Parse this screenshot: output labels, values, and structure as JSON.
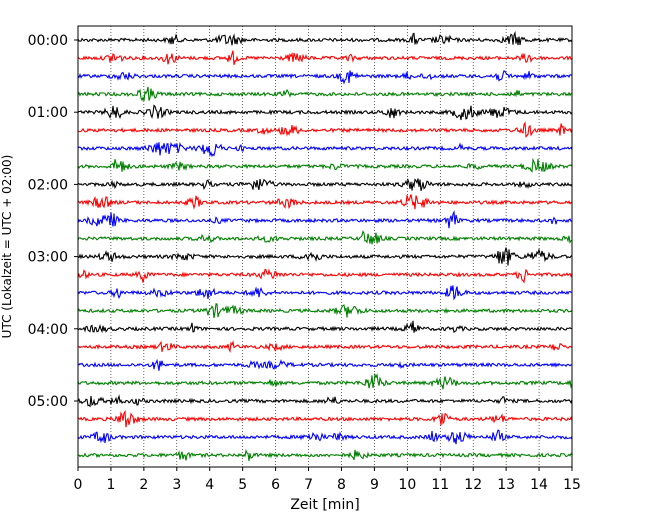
{
  "chart_data": {
    "type": "line",
    "title": "",
    "xlabel": "Zeit  [min]",
    "ylabel": "UTC (Lokalzeit = UTC + 02:00)",
    "xlim": [
      0,
      15
    ],
    "x_ticks": [
      "0",
      "1",
      "2",
      "3",
      "4",
      "5",
      "6",
      "7",
      "8",
      "9",
      "10",
      "11",
      "12",
      "13",
      "14",
      "15"
    ],
    "y_tick_labels": [
      "00:00",
      "01:00",
      "02:00",
      "03:00",
      "04:00",
      "05:00"
    ],
    "grid": "vertical dotted at each minute",
    "trace_interval_min": 15,
    "trace_count": 24,
    "trace_colors": [
      "#000000",
      "#ff0000",
      "#0000ff",
      "#008000"
    ],
    "series": [
      {
        "start": "00:00",
        "color": "#000000"
      },
      {
        "start": "00:15",
        "color": "#ff0000"
      },
      {
        "start": "00:30",
        "color": "#0000ff"
      },
      {
        "start": "00:45",
        "color": "#008000"
      },
      {
        "start": "01:00",
        "color": "#000000"
      },
      {
        "start": "01:15",
        "color": "#ff0000"
      },
      {
        "start": "01:30",
        "color": "#0000ff"
      },
      {
        "start": "01:45",
        "color": "#008000"
      },
      {
        "start": "02:00",
        "color": "#000000"
      },
      {
        "start": "02:15",
        "color": "#ff0000"
      },
      {
        "start": "02:30",
        "color": "#0000ff"
      },
      {
        "start": "02:45",
        "color": "#008000"
      },
      {
        "start": "03:00",
        "color": "#000000"
      },
      {
        "start": "03:15",
        "color": "#ff0000"
      },
      {
        "start": "03:30",
        "color": "#0000ff"
      },
      {
        "start": "03:45",
        "color": "#008000"
      },
      {
        "start": "04:00",
        "color": "#000000"
      },
      {
        "start": "04:15",
        "color": "#ff0000"
      },
      {
        "start": "04:30",
        "color": "#0000ff"
      },
      {
        "start": "04:45",
        "color": "#008000"
      },
      {
        "start": "05:00",
        "color": "#000000"
      },
      {
        "start": "05:15",
        "color": "#ff0000"
      },
      {
        "start": "05:30",
        "color": "#0000ff"
      },
      {
        "start": "05:45",
        "color": "#008000"
      }
    ]
  }
}
